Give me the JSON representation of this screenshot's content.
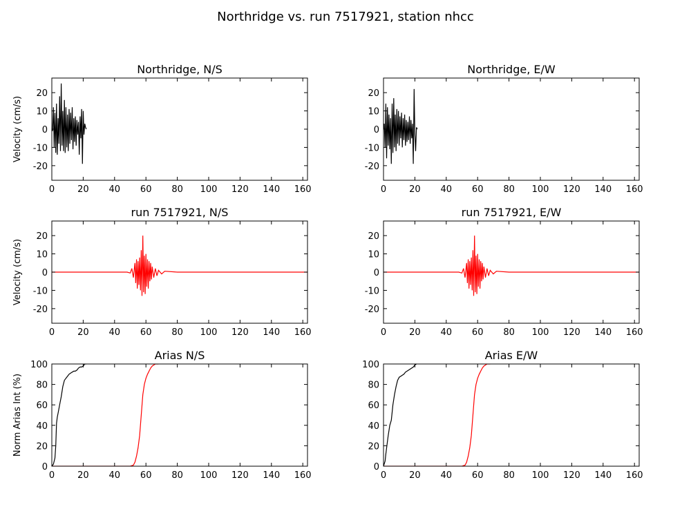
{
  "figure": {
    "title": "Northridge vs. run 7517921, station nhcc"
  },
  "chart_data": [
    {
      "type": "line",
      "title": "Northridge, N/S",
      "ylabel": "Velocity (cm/s)",
      "xlabel": "",
      "xlim": [
        0,
        163
      ],
      "ylim": [
        -28,
        28
      ],
      "xticks": [
        0,
        20,
        40,
        60,
        80,
        100,
        120,
        140,
        160
      ],
      "yticks": [
        -20,
        -10,
        0,
        10,
        20
      ],
      "series": [
        {
          "color": "#000000",
          "x": [
            0,
            0.5,
            1,
            1.5,
            2,
            2.5,
            3,
            3.5,
            4,
            4.5,
            5,
            5.5,
            6,
            6.5,
            7,
            7.5,
            8,
            8.5,
            9,
            9.5,
            10,
            10.5,
            11,
            11.5,
            12,
            12.5,
            13,
            13.5,
            14,
            14.5,
            15,
            15.5,
            16,
            16.5,
            17,
            17.5,
            18,
            18.5,
            19,
            19.5,
            20,
            20.5,
            21,
            21.5,
            22
          ],
          "y": [
            0,
            -1,
            12,
            -10,
            9,
            -13,
            14,
            -14,
            6,
            -8,
            18,
            -12,
            25,
            -9,
            10,
            -12,
            16,
            -13,
            12,
            -10,
            8,
            -12,
            11,
            -8,
            9,
            -6,
            12,
            -11,
            6,
            -7,
            7,
            -9,
            5,
            -3,
            4,
            -14,
            7,
            -5,
            11,
            -19,
            10,
            -3,
            3,
            1,
            0
          ]
        }
      ]
    },
    {
      "type": "line",
      "title": "Northridge, E/W",
      "ylabel": "",
      "xlabel": "",
      "xlim": [
        0,
        163
      ],
      "ylim": [
        -28,
        28
      ],
      "xticks": [
        0,
        20,
        40,
        60,
        80,
        100,
        120,
        140,
        160
      ],
      "yticks": [
        -20,
        -10,
        0,
        10,
        20
      ],
      "series": [
        {
          "color": "#000000",
          "x": [
            0,
            0.5,
            1,
            1.5,
            2,
            2.5,
            3,
            3.5,
            4,
            4.5,
            5,
            5.5,
            6,
            6.5,
            7,
            7.5,
            8,
            8.5,
            9,
            9.5,
            10,
            10.5,
            11,
            11.5,
            12,
            12.5,
            13,
            13.5,
            14,
            14.5,
            15,
            15.5,
            16,
            16.5,
            17,
            17.5,
            18,
            18.5,
            19,
            19.5,
            20,
            20.5,
            21,
            21.5
          ],
          "y": [
            0,
            3,
            -10,
            14,
            -16,
            12,
            -9,
            8,
            -11,
            6,
            -19,
            14,
            -13,
            17,
            -10,
            8,
            -12,
            11,
            -8,
            10,
            -9,
            7,
            -5,
            9,
            -10,
            6,
            -6,
            8,
            -9,
            5,
            -7,
            4,
            -6,
            7,
            -8,
            5,
            -5,
            3,
            -19,
            22,
            -3,
            -12,
            1,
            0
          ]
        }
      ]
    },
    {
      "type": "line",
      "title": "run 7517921, N/S",
      "ylabel": "Velocity (cm/s)",
      "xlabel": "",
      "xlim": [
        0,
        163
      ],
      "ylim": [
        -28,
        28
      ],
      "xticks": [
        0,
        20,
        40,
        60,
        80,
        100,
        120,
        140,
        160
      ],
      "yticks": [
        -20,
        -10,
        0,
        10,
        20
      ],
      "series": [
        {
          "color": "#ff0000",
          "x": [
            0,
            10,
            20,
            30,
            40,
            48,
            50,
            51,
            52,
            53,
            53.5,
            54,
            54.5,
            55,
            55.5,
            56,
            56.5,
            57,
            57.5,
            58,
            58.5,
            59,
            59.5,
            60,
            60.5,
            61,
            61.5,
            62,
            62.5,
            63,
            63.5,
            64,
            65,
            66,
            67,
            68,
            70,
            72,
            80,
            100,
            120,
            140,
            163
          ],
          "y": [
            0,
            0,
            0,
            0,
            0,
            0,
            -0.5,
            2,
            -3,
            5,
            -6,
            7,
            -9,
            6,
            -7,
            8,
            -10,
            12,
            -13,
            20,
            -11,
            9,
            -12,
            10,
            -8,
            7,
            -9,
            6,
            -5,
            5,
            -4,
            3,
            -3,
            2,
            -2,
            1,
            -1,
            0.5,
            0,
            0,
            0,
            0,
            0
          ]
        }
      ]
    },
    {
      "type": "line",
      "title": "run 7517921, E/W",
      "ylabel": "",
      "xlabel": "",
      "xlim": [
        0,
        163
      ],
      "ylim": [
        -28,
        28
      ],
      "xticks": [
        0,
        20,
        40,
        60,
        80,
        100,
        120,
        140,
        160
      ],
      "yticks": [
        -20,
        -10,
        0,
        10,
        20
      ],
      "series": [
        {
          "color": "#ff0000",
          "x": [
            0,
            10,
            20,
            30,
            40,
            48,
            50,
            51,
            52,
            53,
            53.5,
            54,
            54.5,
            55,
            55.5,
            56,
            56.5,
            57,
            57.5,
            58,
            58.5,
            59,
            59.5,
            60,
            60.5,
            61,
            61.5,
            62,
            62.5,
            63,
            63.5,
            64,
            65,
            66,
            67,
            68,
            70,
            72,
            80,
            100,
            120,
            140,
            163
          ],
          "y": [
            0,
            0,
            0,
            0,
            0,
            0,
            -0.5,
            2,
            -3,
            5,
            -6,
            7,
            -9,
            6,
            -7,
            8,
            -10,
            12,
            -13,
            20,
            -11,
            9,
            -12,
            10,
            -8,
            7,
            -9,
            6,
            -5,
            5,
            -4,
            3,
            -3,
            2,
            -2,
            1,
            -1,
            0.5,
            0,
            0,
            0,
            0,
            0
          ]
        }
      ]
    },
    {
      "type": "line",
      "title": "Arias N/S",
      "ylabel": "Norm Arias Int (%)",
      "xlabel": "",
      "xlim": [
        0,
        163
      ],
      "ylim": [
        0,
        100
      ],
      "xticks": [
        0,
        20,
        40,
        60,
        80,
        100,
        120,
        140,
        160
      ],
      "yticks": [
        0,
        20,
        40,
        60,
        80,
        100
      ],
      "series": [
        {
          "color": "#000000",
          "x": [
            0,
            1,
            2,
            2.5,
            3,
            3.5,
            4,
            5,
            6,
            7,
            8,
            9,
            10,
            11,
            12,
            13,
            14,
            15,
            16,
            17,
            18,
            19,
            20,
            21,
            22
          ],
          "y": [
            0,
            2,
            8,
            20,
            42,
            48,
            52,
            60,
            68,
            78,
            84,
            86,
            88,
            90,
            91,
            92,
            93,
            93,
            94,
            96,
            97,
            97,
            98,
            100,
            100
          ]
        }
      ]
    },
    {
      "type": "line",
      "title": "Arias E/W",
      "ylabel": "",
      "xlabel": "",
      "xlim": [
        0,
        163
      ],
      "ylim": [
        0,
        100
      ],
      "xticks": [
        0,
        20,
        40,
        60,
        80,
        100,
        120,
        140,
        160
      ],
      "yticks": [
        0,
        20,
        40,
        60,
        80,
        100
      ],
      "series": [
        {
          "color": "#000000",
          "x": [
            0,
            1,
            1.5,
            2,
            3,
            4,
            5,
            6,
            7,
            8,
            9,
            10,
            11,
            12,
            13,
            14,
            15,
            16,
            17,
            18,
            19,
            20,
            21
          ],
          "y": [
            0,
            5,
            12,
            18,
            30,
            40,
            45,
            60,
            70,
            78,
            84,
            87,
            88,
            89,
            90,
            92,
            93,
            94,
            95,
            96,
            97,
            99,
            100
          ]
        }
      ]
    }
  ],
  "arias_runs": [
    {
      "color": "#ff0000",
      "x": [
        0,
        20,
        40,
        50,
        52,
        53,
        54,
        55,
        56,
        57,
        58,
        59,
        60,
        61,
        62,
        63,
        64,
        65,
        66,
        67,
        68
      ],
      "y": [
        0,
        0,
        0,
        0,
        1,
        4,
        10,
        18,
        30,
        50,
        70,
        80,
        86,
        90,
        93,
        96,
        98,
        99,
        100,
        100,
        100
      ]
    },
    {
      "color": "#ff0000",
      "x": [
        0,
        20,
        40,
        50,
        52,
        53,
        54,
        55,
        56,
        57,
        58,
        59,
        60,
        61,
        62,
        63,
        64,
        65,
        66,
        67,
        68
      ],
      "y": [
        0,
        0,
        0,
        0,
        1,
        4,
        10,
        18,
        30,
        50,
        70,
        80,
        86,
        90,
        93,
        96,
        98,
        99,
        100,
        100,
        100
      ]
    }
  ]
}
